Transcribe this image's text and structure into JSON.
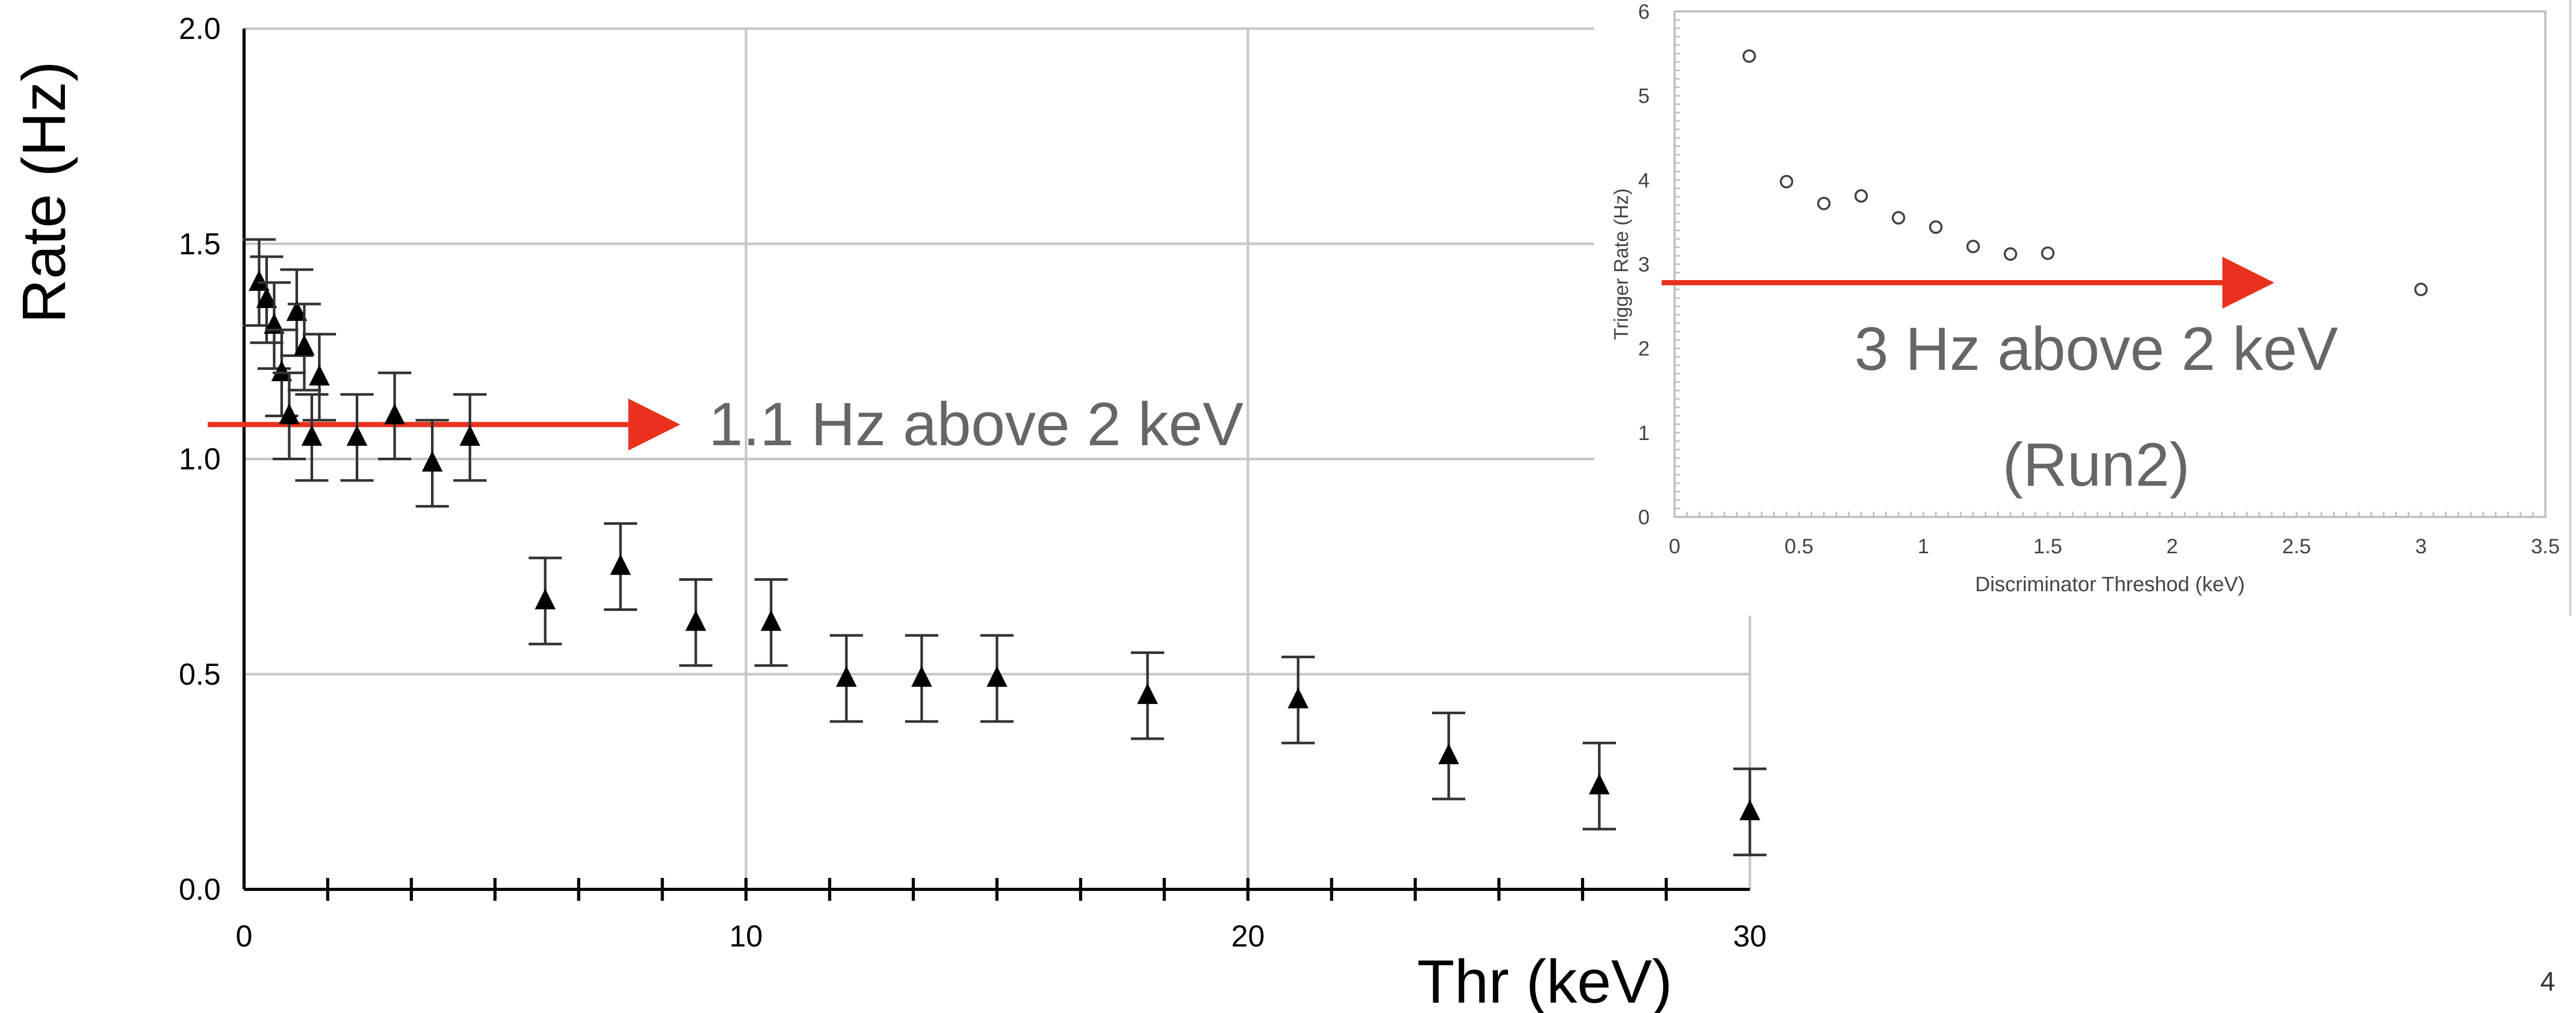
{
  "page_number": "4",
  "colors": {
    "marker": "#000000",
    "grid": "#c8c8c8",
    "arrow": "#e8321e",
    "annotation": "#666666",
    "inset_marker": "#444444"
  },
  "chart_data": [
    {
      "type": "scatter",
      "title": "",
      "xlabel": "Thr (keV)",
      "ylabel": "Rate (Hz)",
      "xlim": [
        0,
        30
      ],
      "ylim": [
        0,
        2
      ],
      "xticks": [
        "0",
        "10",
        "20",
        "30"
      ],
      "yticks": [
        "0.0",
        "0.5",
        "1.0",
        "1.5",
        "2.0"
      ],
      "grid": true,
      "marker": "triangle",
      "annotation": "1.1 Hz above 2 keV",
      "reference_line_y": 1.08,
      "points": [
        {
          "x": 0.3,
          "y": 1.41,
          "err": 0.1
        },
        {
          "x": 0.45,
          "y": 1.37,
          "err": 0.1
        },
        {
          "x": 0.6,
          "y": 1.31,
          "err": 0.1
        },
        {
          "x": 0.75,
          "y": 1.2,
          "err": 0.1
        },
        {
          "x": 0.9,
          "y": 1.1,
          "err": 0.1
        },
        {
          "x": 1.05,
          "y": 1.34,
          "err": 0.1
        },
        {
          "x": 1.2,
          "y": 1.26,
          "err": 0.1
        },
        {
          "x": 1.35,
          "y": 1.05,
          "err": 0.1
        },
        {
          "x": 1.5,
          "y": 1.19,
          "err": 0.1
        },
        {
          "x": 2.25,
          "y": 1.05,
          "err": 0.1
        },
        {
          "x": 3.0,
          "y": 1.1,
          "err": 0.1
        },
        {
          "x": 3.75,
          "y": 0.99,
          "err": 0.1
        },
        {
          "x": 4.5,
          "y": 1.05,
          "err": 0.1
        },
        {
          "x": 6.0,
          "y": 0.67,
          "err": 0.1
        },
        {
          "x": 7.5,
          "y": 0.75,
          "err": 0.1
        },
        {
          "x": 9.0,
          "y": 0.62,
          "err": 0.1
        },
        {
          "x": 10.5,
          "y": 0.62,
          "err": 0.1
        },
        {
          "x": 12.0,
          "y": 0.49,
          "err": 0.1
        },
        {
          "x": 13.5,
          "y": 0.49,
          "err": 0.1
        },
        {
          "x": 15.0,
          "y": 0.49,
          "err": 0.1
        },
        {
          "x": 18.0,
          "y": 0.45,
          "err": 0.1
        },
        {
          "x": 21.0,
          "y": 0.44,
          "err": 0.1
        },
        {
          "x": 24.0,
          "y": 0.31,
          "err": 0.1
        },
        {
          "x": 27.0,
          "y": 0.24,
          "err": 0.1
        },
        {
          "x": 30.0,
          "y": 0.18,
          "err": 0.1
        }
      ]
    },
    {
      "type": "scatter",
      "title": "",
      "xlabel": "Discriminator Threshod (keV)",
      "ylabel": "Trigger Rate (Hz)",
      "xlim": [
        0,
        3.5
      ],
      "ylim": [
        0,
        6
      ],
      "xticks": [
        "0",
        "0.5",
        "1",
        "1.5",
        "2",
        "2.5",
        "3",
        "3.5"
      ],
      "yticks": [
        "0",
        "1",
        "2",
        "3",
        "4",
        "5",
        "6"
      ],
      "grid": false,
      "marker": "open-circle",
      "annotation": [
        "3 Hz above 2 keV",
        "(Run2)"
      ],
      "reference_line_y": 2.78,
      "points": [
        {
          "x": 0.3,
          "y": 5.47
        },
        {
          "x": 0.45,
          "y": 3.98
        },
        {
          "x": 0.6,
          "y": 3.72
        },
        {
          "x": 0.75,
          "y": 3.81
        },
        {
          "x": 0.9,
          "y": 3.55
        },
        {
          "x": 1.05,
          "y": 3.44
        },
        {
          "x": 1.2,
          "y": 3.21
        },
        {
          "x": 1.35,
          "y": 3.12
        },
        {
          "x": 1.5,
          "y": 3.13
        },
        {
          "x": 2.25,
          "y": 2.86
        },
        {
          "x": 3.0,
          "y": 2.7
        }
      ]
    }
  ]
}
